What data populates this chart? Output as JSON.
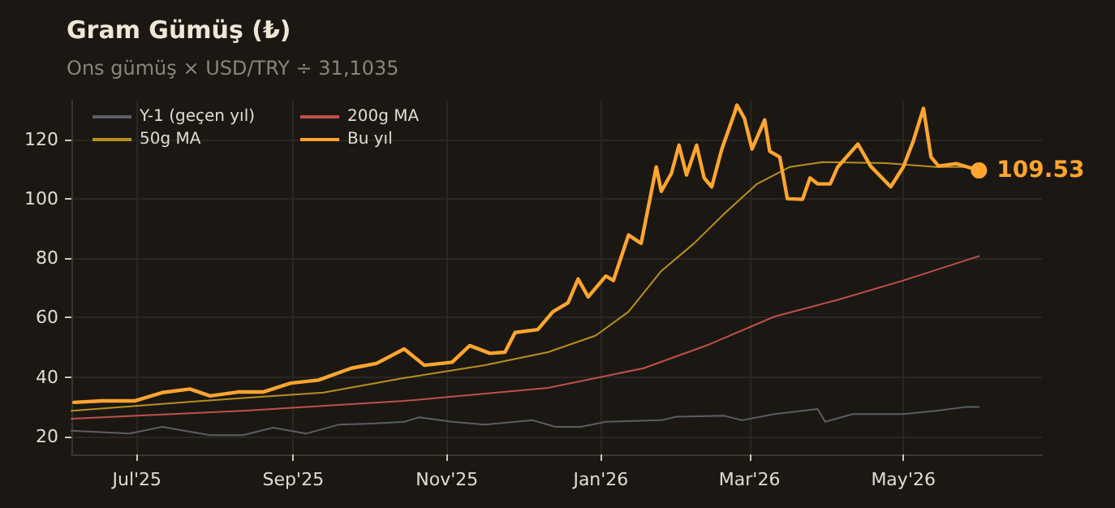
{
  "chart_data": {
    "type": "line",
    "title": "Gram Gümüş (₺)",
    "subtitle": "Ons gümüş × USD/TRY ÷ 31,1035",
    "xlim": [
      "2025-06-05",
      "2026-06-25"
    ],
    "xticks": [
      {
        "value": "2025-07-01",
        "label": "Jul'25"
      },
      {
        "value": "2025-09-01",
        "label": "Sep'25"
      },
      {
        "value": "2025-11-01",
        "label": "Nov'25"
      },
      {
        "value": "2026-01-01",
        "label": "Jan'26"
      },
      {
        "value": "2026-03-01",
        "label": "Mar'26"
      },
      {
        "value": "2026-05-01",
        "label": "May'26"
      }
    ],
    "ylim": [
      14,
      133
    ],
    "yticks": [
      20,
      40,
      60,
      80,
      100,
      120
    ],
    "grid": true,
    "legend": "top left",
    "marker": "none",
    "line_style": "solid",
    "series": [
      {
        "name": "Y-1 (geçen yıl)",
        "color": "#5a5e66",
        "x": [
          "2025-06-05",
          "2025-06-28",
          "2025-07-11",
          "2025-07-30",
          "2025-08-12",
          "2025-08-24",
          "2025-09-06",
          "2025-09-19",
          "2025-10-02",
          "2025-10-15",
          "2025-10-21",
          "2025-11-03",
          "2025-11-16",
          "2025-12-05",
          "2025-12-14",
          "2025-12-24",
          "2026-01-03",
          "2026-01-25",
          "2026-01-31",
          "2026-02-19",
          "2026-02-26",
          "2026-03-11",
          "2026-03-28",
          "2026-03-31",
          "2026-04-11",
          "2026-05-01",
          "2026-05-14",
          "2026-05-26",
          "2026-05-31"
        ],
        "values": [
          22,
          21,
          23.3,
          20.5,
          20.5,
          23,
          21,
          24,
          24.4,
          25,
          26.5,
          25,
          24,
          25.5,
          23.3,
          23.3,
          25,
          25.5,
          26.7,
          27,
          25.5,
          27.6,
          29.3,
          25,
          27.6,
          27.6,
          28.7,
          30,
          30
        ]
      },
      {
        "name": "50g MA",
        "color": "#b8901e",
        "x": [
          "2025-06-05",
          "2025-07-11",
          "2025-08-12",
          "2025-09-13",
          "2025-10-15",
          "2025-11-16",
          "2025-12-11",
          "2025-12-30",
          "2026-01-12",
          "2026-01-25",
          "2026-02-07",
          "2026-02-19",
          "2026-03-04",
          "2026-03-17",
          "2026-03-30",
          "2026-04-24",
          "2026-05-14",
          "2026-05-31"
        ],
        "values": [
          28.7,
          31,
          33,
          34.8,
          39.7,
          44,
          48.4,
          54,
          62,
          75.7,
          85,
          95,
          105,
          110.7,
          112.3,
          112,
          110.7,
          110.7
        ]
      },
      {
        "name": "200g MA",
        "color": "#c0504d",
        "x": [
          "2025-06-05",
          "2025-08-12",
          "2025-10-15",
          "2025-12-11",
          "2026-01-18",
          "2026-02-13",
          "2026-03-11",
          "2026-04-05",
          "2026-05-01",
          "2026-05-31"
        ],
        "values": [
          26,
          28.7,
          32,
          36.4,
          43,
          51,
          60.4,
          66,
          72.5,
          80.7
        ]
      },
      {
        "name": "Bu yıl",
        "color": "#ffa530",
        "x": [
          "2025-06-06",
          "2025-06-17",
          "2025-06-30",
          "2025-07-11",
          "2025-07-22",
          "2025-07-30",
          "2025-08-10",
          "2025-08-20",
          "2025-08-31",
          "2025-09-11",
          "2025-09-24",
          "2025-10-04",
          "2025-10-15",
          "2025-10-23",
          "2025-11-03",
          "2025-11-10",
          "2025-11-18",
          "2025-11-24",
          "2025-11-28",
          "2025-12-07",
          "2025-12-13",
          "2025-12-19",
          "2025-12-23",
          "2025-12-27",
          "2026-01-03",
          "2026-01-06",
          "2026-01-12",
          "2026-01-17",
          "2026-01-23",
          "2026-01-25",
          "2026-01-29",
          "2026-02-01",
          "2026-02-04",
          "2026-02-08",
          "2026-02-11",
          "2026-02-14",
          "2026-02-18",
          "2026-02-23",
          "2026-02-24",
          "2026-02-27",
          "2026-03-02",
          "2026-03-07",
          "2026-03-09",
          "2026-03-13",
          "2026-03-16",
          "2026-03-22",
          "2026-03-25",
          "2026-03-28",
          "2026-04-02",
          "2026-04-05",
          "2026-04-13",
          "2026-04-18",
          "2026-04-26",
          "2026-05-01",
          "2026-05-05",
          "2026-05-09",
          "2026-05-12",
          "2026-05-15",
          "2026-05-22",
          "2026-05-31"
        ],
        "values": [
          31.5,
          32,
          32,
          34.8,
          36,
          33.7,
          35,
          35,
          38,
          39,
          43,
          44.6,
          49.5,
          44,
          45,
          50.6,
          48,
          48.4,
          55,
          56,
          62,
          65,
          73,
          67,
          74,
          72.5,
          87.8,
          85,
          110.7,
          102.5,
          108.5,
          118,
          108,
          118,
          107,
          104,
          116.7,
          128.7,
          131.5,
          127,
          116.7,
          126.5,
          116,
          114,
          100,
          99.8,
          107,
          105,
          105,
          110.7,
          118.4,
          111,
          104,
          110.7,
          119.5,
          130.4,
          114,
          111,
          111.8,
          109.53
        ],
        "value_labels": [
          null,
          null,
          null,
          null,
          null,
          null,
          null,
          null,
          null,
          null,
          null,
          null,
          null,
          null,
          null,
          null,
          null,
          null,
          null,
          null,
          null,
          null,
          null,
          null,
          null,
          null,
          null,
          null,
          null,
          null,
          null,
          null,
          null,
          null,
          null,
          null,
          null,
          null,
          null,
          null,
          null,
          null,
          null,
          null,
          null,
          null,
          null,
          null,
          null,
          null,
          null,
          null,
          null,
          null,
          null,
          null,
          null,
          null,
          null,
          "109.53"
        ]
      }
    ]
  }
}
